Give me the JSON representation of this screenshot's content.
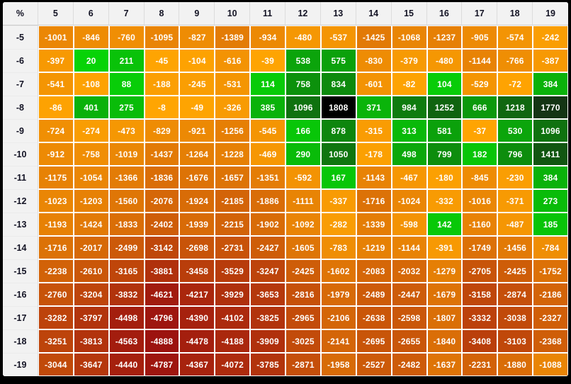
{
  "chart_data": {
    "type": "heatmap",
    "corner_label": "%",
    "columns": [
      "5",
      "6",
      "7",
      "8",
      "9",
      "10",
      "11",
      "12",
      "13",
      "14",
      "15",
      "16",
      "17",
      "18",
      "19"
    ],
    "row_labels": [
      "-5",
      "-6",
      "-7",
      "-8",
      "-9",
      "-10",
      "-11",
      "-12",
      "-13",
      "-14",
      "-15",
      "-16",
      "-17",
      "-18",
      "-19"
    ],
    "values": [
      [
        -1001,
        -846,
        -760,
        -1095,
        -827,
        -1389,
        -934,
        -480,
        -537,
        -1425,
        -1068,
        -1237,
        -905,
        -574,
        -242
      ],
      [
        -397,
        20,
        211,
        -45,
        -104,
        -616,
        -39,
        538,
        575,
        -830,
        -379,
        -480,
        -1144,
        -766,
        -387
      ],
      [
        -541,
        -108,
        88,
        -188,
        -245,
        -531,
        114,
        758,
        834,
        -601,
        -82,
        104,
        -529,
        -72,
        384
      ],
      [
        -86,
        401,
        275,
        -8,
        -49,
        -326,
        385,
        1096,
        1808,
        371,
        984,
        1252,
        666,
        1218,
        1770
      ],
      [
        -724,
        -274,
        -473,
        -829,
        -921,
        -1256,
        -545,
        166,
        878,
        -315,
        313,
        581,
        -37,
        530,
        1096
      ],
      [
        -912,
        -758,
        -1019,
        -1437,
        -1264,
        -1228,
        -469,
        290,
        1050,
        -178,
        498,
        799,
        182,
        796,
        1411
      ],
      [
        -1175,
        -1054,
        -1366,
        -1836,
        -1676,
        -1657,
        -1351,
        -592,
        167,
        -1143,
        -467,
        -180,
        -845,
        -230,
        384
      ],
      [
        -1023,
        -1203,
        -1560,
        -2076,
        -1924,
        -2185,
        -1886,
        -1111,
        -337,
        -1716,
        -1024,
        -332,
        -1016,
        -371,
        273
      ],
      [
        -1193,
        -1424,
        -1833,
        -2402,
        -1939,
        -2215,
        -1902,
        -1092,
        -282,
        -1339,
        -598,
        142,
        -1160,
        -487,
        185
      ],
      [
        -1716,
        -2017,
        -2499,
        -3142,
        -2698,
        -2731,
        -2427,
        -1605,
        -783,
        -1219,
        -1144,
        -391,
        -1749,
        -1456,
        -784
      ],
      [
        -2238,
        -2610,
        -3165,
        -3881,
        -3458,
        -3529,
        -3247,
        -2425,
        -1602,
        -2083,
        -2032,
        -1279,
        -2705,
        -2425,
        -1752
      ],
      [
        -2760,
        -3204,
        -3832,
        -4621,
        -4217,
        -3929,
        -3653,
        -2816,
        -1979,
        -2489,
        -2447,
        -1679,
        -3158,
        -2874,
        -2186
      ],
      [
        -3282,
        -3797,
        -4498,
        -4796,
        -4390,
        -4102,
        -3825,
        -2965,
        -2106,
        -2638,
        -2598,
        -1807,
        -3332,
        -3038,
        -2327
      ],
      [
        -3251,
        -3813,
        -4563,
        -4888,
        -4478,
        -4188,
        -3909,
        -3025,
        -2141,
        -2695,
        -2655,
        -1840,
        -3408,
        -3103,
        -2368
      ],
      [
        -3044,
        -3647,
        -4440,
        -4787,
        -4367,
        -4072,
        -3785,
        -2871,
        -1958,
        -2527,
        -2482,
        -1637,
        -2231,
        -1880,
        -1088
      ]
    ],
    "value_range": {
      "min": -4888,
      "max": 1808
    },
    "colors": {
      "negative_low": "#ffa502",
      "negative_high": "#9c130f",
      "positive_low": "#07d507",
      "positive_high": "#143214",
      "best_cell_bg": "#000000",
      "cell_text": "#ffffff",
      "header_bg": "#f2f2f2",
      "header_text": "#131324",
      "grid_gap": "#ffffff",
      "frame": "#000000"
    },
    "legend_position": "none",
    "grid": true
  }
}
